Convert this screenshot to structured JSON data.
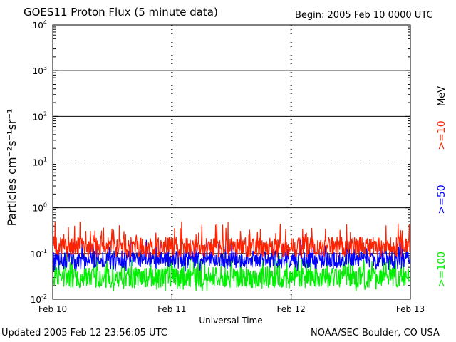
{
  "header": {
    "title": "GOES11 Proton Flux (5 minute data)",
    "begin": "Begin: 2005 Feb 10 0000 UTC"
  },
  "footer": {
    "updated": "Updated 2005 Feb 12 23:56:05 UTC",
    "credit": "NOAA/SEC Boulder, CO USA"
  },
  "chart_data": {
    "type": "line",
    "title": "GOES11 Proton Flux (5 minute data)",
    "xlabel": "Universal Time",
    "ylabel": "Particles cm⁻²s⁻¹sr⁻¹",
    "yscale": "log",
    "ylim": [
      0.01,
      10000
    ],
    "y_ticks": [
      {
        "value": 0.01,
        "base": "10",
        "exp": "-2"
      },
      {
        "value": 0.1,
        "base": "10",
        "exp": "-1"
      },
      {
        "value": 1,
        "base": "10",
        "exp": "0"
      },
      {
        "value": 10,
        "base": "10",
        "exp": "1"
      },
      {
        "value": 100,
        "base": "10",
        "exp": "2"
      },
      {
        "value": 1000,
        "base": "10",
        "exp": "3"
      },
      {
        "value": 10000,
        "base": "10",
        "exp": "4"
      }
    ],
    "x_ticks": [
      "Feb 10",
      "Feb 11",
      "Feb 12",
      "Feb 13"
    ],
    "xlim": [
      "2005-02-10",
      "2005-02-13"
    ],
    "horizontal_lines": [
      {
        "value": 1000,
        "style": "solid"
      },
      {
        "value": 100,
        "style": "solid"
      },
      {
        "value": 10,
        "style": "dashed"
      },
      {
        "value": 1,
        "style": "solid"
      },
      {
        "value": 0.1,
        "style": "solid"
      }
    ],
    "series": [
      {
        "name": ">=10",
        "color": "#ff2200",
        "typical": 0.14,
        "range": [
          0.08,
          0.5
        ]
      },
      {
        "name": ">=50",
        "color": "#0000ff",
        "typical": 0.075,
        "range": [
          0.04,
          0.2
        ]
      },
      {
        "name": ">=100",
        "color": "#00ee00",
        "typical": 0.03,
        "range": [
          0.015,
          0.1
        ]
      }
    ],
    "legend_unit": "MeV",
    "legend_position": "right"
  }
}
